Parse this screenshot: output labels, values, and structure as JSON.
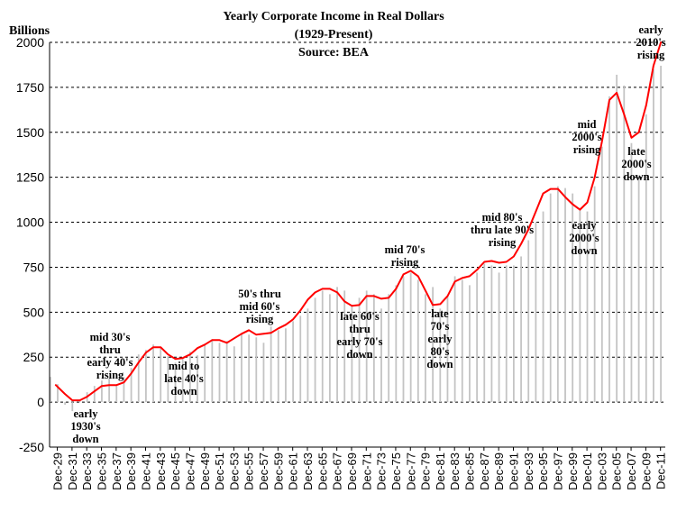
{
  "chart_data": {
    "type": "bar+line",
    "title": "Yearly Corporate Income in Real Dollars",
    "subtitle": "(1929-Present)",
    "source": "Source: BEA",
    "ylabel": "Billions",
    "ylim": [
      -250,
      2000
    ],
    "yticks": [
      -250,
      0,
      250,
      500,
      750,
      1000,
      1250,
      1500,
      1750,
      2000
    ],
    "grid": true,
    "x_tick_labels": [
      "Dec-29",
      "Dec-31",
      "Dec-33",
      "Dec-35",
      "Dec-37",
      "Dec-39",
      "Dec-41",
      "Dec-43",
      "Dec-45",
      "Dec-47",
      "Dec-49",
      "Dec-51",
      "Dec-53",
      "Dec-55",
      "Dec-57",
      "Dec-59",
      "Dec-61",
      "Dec-63",
      "Dec-65",
      "Dec-67",
      "Dec-69",
      "Dec-71",
      "Dec-73",
      "Dec-75",
      "Dec-77",
      "Dec-79",
      "Dec-81",
      "Dec-83",
      "Dec-85",
      "Dec-87",
      "Dec-89",
      "Dec-91",
      "Dec-93",
      "Dec-95",
      "Dec-97",
      "Dec-99",
      "Dec-01",
      "Dec-03",
      "Dec-05",
      "Dec-07",
      "Dec-09",
      "Dec-11"
    ],
    "bar_years": [
      1929,
      1930,
      1931,
      1932,
      1933,
      1934,
      1935,
      1936,
      1937,
      1938,
      1939,
      1940,
      1941,
      1942,
      1943,
      1944,
      1945,
      1946,
      1947,
      1948,
      1949,
      1950,
      1951,
      1952,
      1953,
      1954,
      1955,
      1956,
      1957,
      1958,
      1959,
      1960,
      1961,
      1962,
      1963,
      1964,
      1965,
      1966,
      1967,
      1968,
      1969,
      1970,
      1971,
      1972,
      1973,
      1974,
      1975,
      1976,
      1977,
      1978,
      1979,
      1980,
      1981,
      1982,
      1983,
      1984,
      1985,
      1986,
      1987,
      1988,
      1989,
      1990,
      1991,
      1992,
      1993,
      1994,
      1995,
      1996,
      1997,
      1998,
      1999,
      2000,
      2001,
      2002,
      2003,
      2004,
      2005,
      2006,
      2007,
      2008,
      2009,
      2010,
      2011,
      2012
    ],
    "bar_values": [
      140,
      100,
      -15,
      -50,
      10,
      55,
      90,
      120,
      130,
      90,
      140,
      190,
      265,
      290,
      320,
      300,
      255,
      220,
      240,
      280,
      260,
      320,
      350,
      330,
      340,
      310,
      380,
      375,
      360,
      330,
      420,
      400,
      410,
      450,
      480,
      520,
      580,
      620,
      600,
      640,
      620,
      540,
      580,
      620,
      600,
      520,
      600,
      650,
      700,
      720,
      680,
      600,
      640,
      520,
      590,
      700,
      680,
      650,
      720,
      770,
      760,
      720,
      760,
      760,
      810,
      900,
      1000,
      1060,
      1160,
      1200,
      1190,
      1160,
      1080,
      1060,
      1200,
      1420,
      1700,
      1820,
      1760,
      1440,
      1260,
      1600,
      1850,
      1870
    ],
    "trend_series": {
      "name": "",
      "x": [
        1929.75,
        1931,
        1932,
        1933,
        1934,
        1935,
        1936,
        1937,
        1938,
        1939,
        1940,
        1941,
        1942,
        1943,
        1944,
        1945,
        1946,
        1947,
        1948,
        1949,
        1950,
        1951,
        1952,
        1953,
        1954,
        1955,
        1956,
        1957,
        1958,
        1959,
        1960,
        1961,
        1962,
        1963,
        1964,
        1965,
        1966,
        1967,
        1968,
        1969,
        1970,
        1971,
        1972,
        1973,
        1974,
        1975,
        1976,
        1977,
        1978,
        1979,
        1980,
        1981,
        1982,
        1983,
        1984,
        1985,
        1986,
        1987,
        1988,
        1989,
        1990,
        1991,
        1992,
        1993,
        1994,
        1995,
        1996,
        1997,
        1998,
        1999,
        2000,
        2001,
        2002,
        2003,
        2004,
        2005,
        2006,
        2007,
        2008,
        2009,
        2010,
        2011,
        2012
      ],
      "values": [
        95,
        45,
        10,
        10,
        30,
        60,
        90,
        95,
        95,
        110,
        160,
        220,
        275,
        305,
        305,
        265,
        240,
        245,
        265,
        300,
        320,
        345,
        345,
        330,
        355,
        380,
        400,
        375,
        380,
        385,
        410,
        430,
        460,
        510,
        570,
        610,
        630,
        630,
        610,
        560,
        535,
        540,
        590,
        590,
        575,
        580,
        630,
        710,
        730,
        700,
        620,
        540,
        545,
        590,
        670,
        690,
        700,
        735,
        780,
        785,
        775,
        780,
        810,
        880,
        960,
        1060,
        1160,
        1185,
        1185,
        1140,
        1100,
        1070,
        1110,
        1250,
        1450,
        1680,
        1720,
        1600,
        1470,
        1500,
        1650,
        1870,
        2000
      ]
    },
    "annotations": [
      {
        "lines": [
          "early",
          "1930's",
          "down"
        ]
      },
      {
        "lines": [
          "mid 30's",
          "thru",
          "early 40's",
          "rising"
        ]
      },
      {
        "lines": [
          "mid to",
          "late 40's",
          "down"
        ]
      },
      {
        "lines": [
          "50's thru",
          "mid 60's",
          "rising"
        ]
      },
      {
        "lines": [
          "late 60's",
          "thru",
          "early 70's",
          "down"
        ]
      },
      {
        "lines": [
          "mid 70's",
          "rising"
        ]
      },
      {
        "lines": [
          "late",
          "70's",
          "early",
          "80's",
          "down"
        ]
      },
      {
        "lines": [
          "mid 80's",
          "thru late 90's",
          "rising"
        ]
      },
      {
        "lines": [
          "early",
          "2000's",
          "down"
        ]
      },
      {
        "lines": [
          "mid",
          "2000's",
          "rising"
        ]
      },
      {
        "lines": [
          "late",
          "2000's",
          "down"
        ]
      },
      {
        "lines": [
          "early",
          "2010's",
          "rising"
        ]
      }
    ]
  }
}
